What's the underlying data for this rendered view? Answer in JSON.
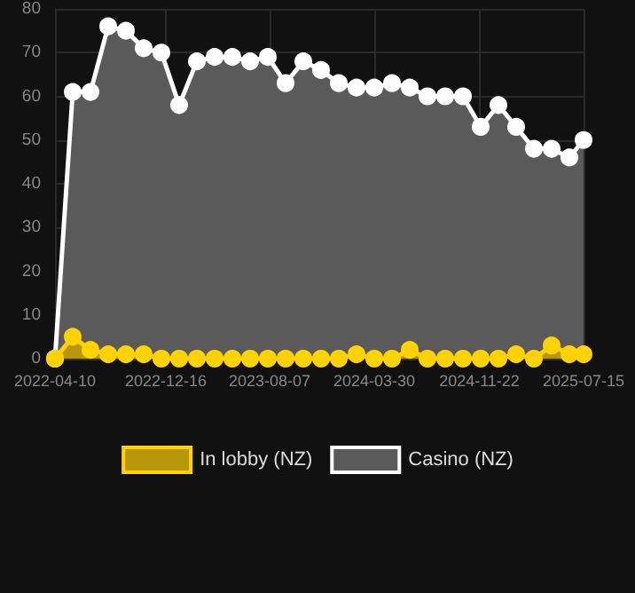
{
  "chart_data": {
    "type": "area",
    "x": [
      "2022-04-10",
      "2022-05-20",
      "2022-06-29",
      "2022-08-08",
      "2022-09-17",
      "2022-10-27",
      "2022-12-06",
      "2023-01-15",
      "2023-02-24",
      "2023-04-05",
      "2023-05-15",
      "2023-06-24",
      "2023-08-03",
      "2023-09-12",
      "2023-10-22",
      "2023-12-01",
      "2024-01-10",
      "2024-02-19",
      "2024-03-30",
      "2024-05-09",
      "2024-06-18",
      "2024-07-28",
      "2024-09-06",
      "2024-10-16",
      "2024-11-25",
      "2025-01-04",
      "2025-02-13",
      "2025-03-25",
      "2025-05-04",
      "2025-06-13",
      "2025-07-15"
    ],
    "series": [
      {
        "name": "In lobby (NZ)",
        "color": "#ffd200",
        "values": [
          0,
          5,
          2,
          1,
          1,
          1,
          0,
          0,
          0,
          0,
          0,
          0,
          0,
          0,
          0,
          0,
          0,
          1,
          0,
          0,
          2,
          0,
          0,
          0,
          0,
          0,
          1,
          0,
          3,
          1,
          1
        ]
      },
      {
        "name": "Casino (NZ)",
        "color": "#ffffff",
        "values": [
          0,
          61,
          61,
          76,
          75,
          71,
          70,
          58,
          68,
          69,
          69,
          68,
          69,
          63,
          68,
          66,
          63,
          62,
          62,
          63,
          62,
          60,
          60,
          60,
          53,
          58,
          53,
          48,
          48,
          46,
          50
        ]
      }
    ],
    "xlim": [
      "2022-04-10",
      "2025-07-15"
    ],
    "xticks": [
      "2022-04-10",
      "2022-12-16",
      "2023-08-07",
      "2024-03-30",
      "2024-11-22",
      "2025-07-15"
    ],
    "ylim": [
      0,
      80
    ],
    "yticks": [
      0,
      10,
      20,
      30,
      40,
      50,
      60,
      70,
      80
    ],
    "grid": true,
    "legend": "bottom",
    "marker": "circle"
  }
}
